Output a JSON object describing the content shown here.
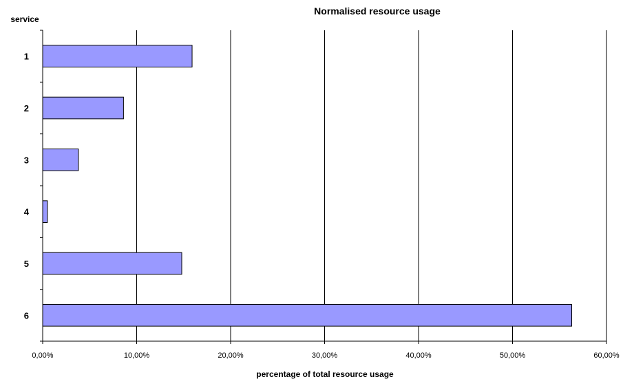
{
  "chart_data": {
    "type": "bar",
    "orientation": "horizontal",
    "title": "Normalised resource usage",
    "xlabel": "percentage of total resource usage",
    "ylabel": "service",
    "categories": [
      "1",
      "2",
      "3",
      "4",
      "5",
      "6"
    ],
    "values": [
      15.9,
      8.6,
      3.8,
      0.5,
      14.8,
      56.3
    ],
    "xlim": [
      0,
      60
    ],
    "xticks": [
      0,
      10,
      20,
      30,
      40,
      50,
      60
    ],
    "xtick_labels": [
      "0,00%",
      "10,00%",
      "20,00%",
      "30,00%",
      "40,00%",
      "50,00%",
      "60,00%"
    ],
    "grid": "vertical",
    "legend": "none",
    "colors": {
      "bar_fill": "#9999ff",
      "bar_stroke": "#000000",
      "grid": "#000000"
    }
  }
}
